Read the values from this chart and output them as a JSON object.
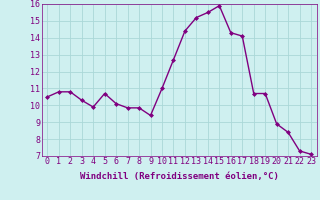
{
  "x": [
    0,
    1,
    2,
    3,
    4,
    5,
    6,
    7,
    8,
    9,
    10,
    11,
    12,
    13,
    14,
    15,
    16,
    17,
    18,
    19,
    20,
    21,
    22,
    23
  ],
  "y": [
    10.5,
    10.8,
    10.8,
    10.3,
    9.9,
    10.7,
    10.1,
    9.85,
    9.85,
    9.4,
    11.0,
    12.7,
    14.4,
    15.2,
    15.5,
    15.9,
    14.3,
    14.1,
    10.7,
    10.7,
    8.9,
    8.4,
    7.3,
    7.1
  ],
  "line_color": "#800080",
  "marker": "D",
  "markersize": 2.0,
  "linewidth": 1.0,
  "xlabel": "Windchill (Refroidissement éolien,°C)",
  "xlabel_fontsize": 6.5,
  "bg_color": "#cff0f0",
  "grid_color": "#aad8d8",
  "xlim": [
    -0.5,
    23.5
  ],
  "ylim": [
    7,
    16
  ],
  "yticks": [
    7,
    8,
    9,
    10,
    11,
    12,
    13,
    14,
    15,
    16
  ],
  "xticks": [
    0,
    1,
    2,
    3,
    4,
    5,
    6,
    7,
    8,
    9,
    10,
    11,
    12,
    13,
    14,
    15,
    16,
    17,
    18,
    19,
    20,
    21,
    22,
    23
  ],
  "tick_fontsize": 6.0
}
